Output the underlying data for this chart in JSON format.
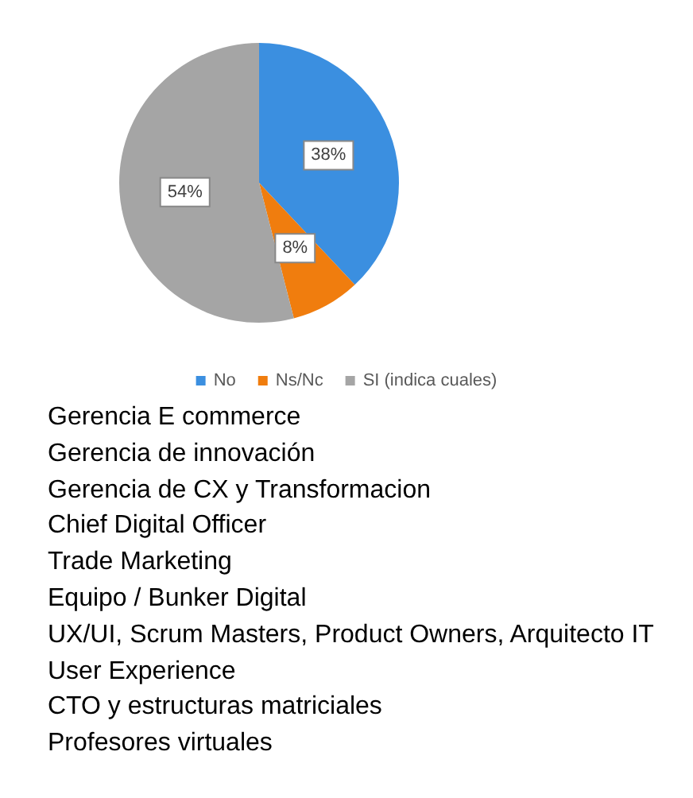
{
  "chart_data": {
    "type": "pie",
    "categories": [
      "No",
      "Ns/Nc",
      "SI (indica cuales)"
    ],
    "values": [
      38,
      8,
      54
    ],
    "value_labels": [
      "38%",
      "8%",
      "54%"
    ],
    "colors": [
      "#3b8fe0",
      "#f07d0e",
      "#a5a5a5"
    ],
    "legend": "bottom",
    "annotations": [
      "Gerencia E commerce",
      "Gerencia de innovación",
      "Gerencia de CX y Transformacion",
      "Chief Digital Officer",
      "Trade Marketing",
      "Equipo / Bunker Digital",
      "UX/UI, Scrum Masters, Product Owners, Arquitecto IT",
      "User Experience",
      "CTO y estructuras matriciales",
      "Profesores virtuales"
    ]
  }
}
